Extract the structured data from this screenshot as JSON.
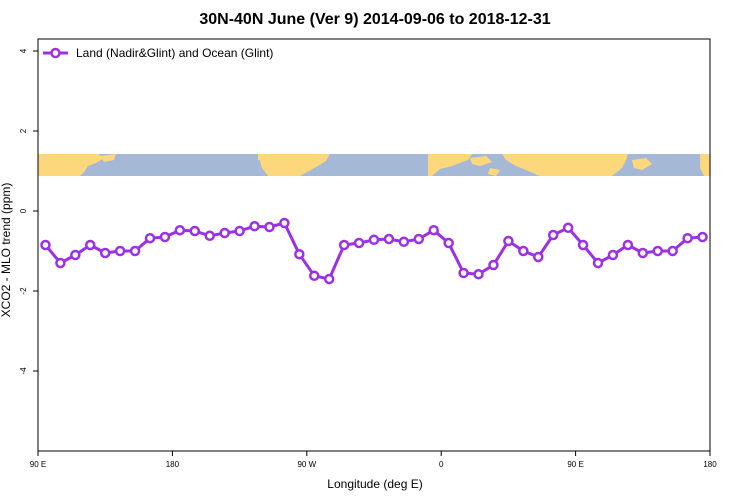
{
  "chart_data": {
    "type": "line",
    "title": "30N-40N June (Ver 9)   2014-09-06 to 2018-12-31",
    "xlabel": "Longitude (deg E)",
    "ylabel": "XCO2 - MLO trend (ppm)",
    "xlim": [
      0,
      45
    ],
    "ylim": [
      -6,
      4.3
    ],
    "x_ticks": [
      {
        "value": 0,
        "label": "90 E"
      },
      {
        "value": 9,
        "label": "180"
      },
      {
        "value": 18,
        "label": "90 W"
      },
      {
        "value": 27,
        "label": "0"
      },
      {
        "value": 36,
        "label": "90 E"
      },
      {
        "value": 45,
        "label": "180"
      }
    ],
    "y_ticks": [
      {
        "value": 4,
        "label": "4"
      },
      {
        "value": 2,
        "label": "2"
      },
      {
        "value": 0,
        "label": "0"
      },
      {
        "value": -2,
        "label": "-2"
      },
      {
        "value": -4,
        "label": "-4"
      }
    ],
    "series": [
      {
        "name": "Land (Nadir&Glint) and Ocean (Glint)",
        "color": "#9b30e6",
        "x": [
          0.5,
          1.5,
          2.5,
          3.5,
          4.5,
          5.5,
          6.5,
          7.5,
          8.5,
          9.5,
          10.5,
          11.5,
          12.5,
          13.5,
          14.5,
          15.5,
          16.5,
          17.5,
          18.5,
          19.5,
          20.5,
          21.5,
          22.5,
          23.5,
          24.5,
          25.5,
          26.5,
          27.5,
          28.5,
          29.5,
          30.5,
          31.5,
          32.5,
          33.5,
          34.5,
          35.5,
          36.5,
          37.5,
          38.5,
          39.5,
          40.5,
          41.5,
          42.5,
          43.5,
          44.5
        ],
        "y": [
          -0.85,
          -1.3,
          -1.1,
          -0.85,
          -1.05,
          -1.0,
          -1.0,
          -0.68,
          -0.65,
          -0.48,
          -0.5,
          -0.62,
          -0.55,
          -0.5,
          -0.38,
          -0.4,
          -0.3,
          -1.08,
          -1.62,
          -1.7,
          -0.85,
          -0.8,
          -0.72,
          -0.7,
          -0.77,
          -0.7,
          -0.48,
          -0.8,
          -1.55,
          -1.58,
          -1.35,
          -0.75,
          -1.0,
          -1.15,
          -0.6,
          -0.42,
          -0.85,
          -1.3,
          -1.1,
          -0.85,
          -1.05,
          -1.0,
          -1.0,
          -0.68,
          -0.65
        ]
      }
    ],
    "legend": {
      "position": "top-left"
    },
    "grid": false,
    "colors": {
      "ocean": "#a5b8d6",
      "land": "#fdd77c"
    }
  }
}
